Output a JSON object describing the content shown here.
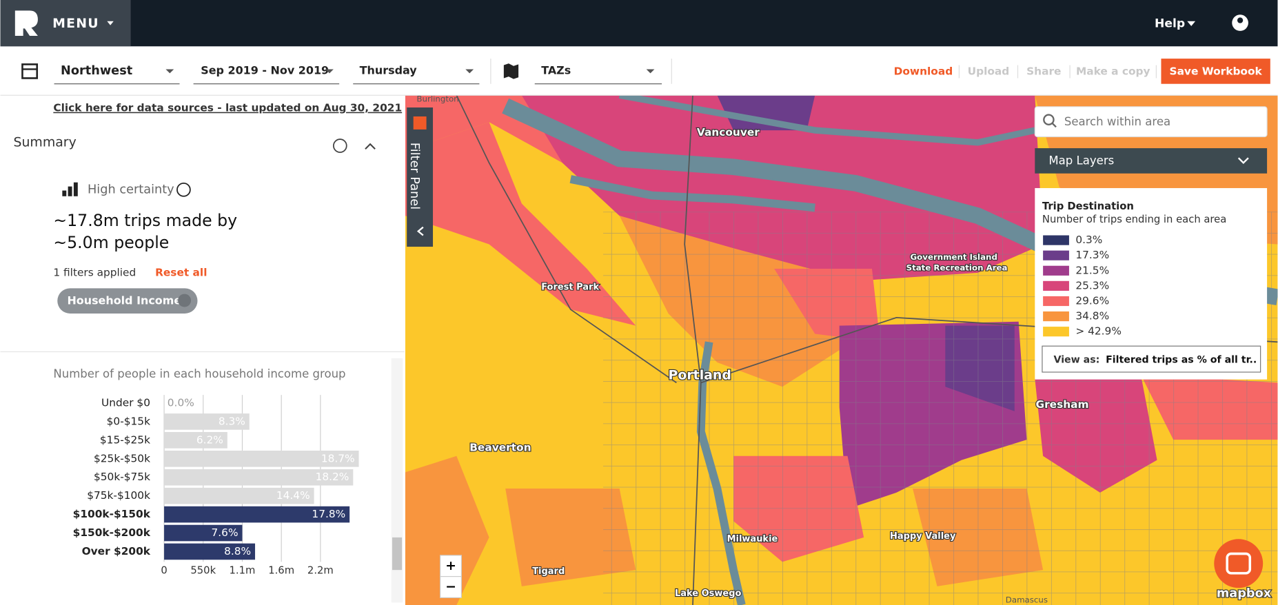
{
  "header": {
    "menu": "MENU",
    "help": "Help"
  },
  "toolbar": {
    "region": "Northwest",
    "dates": "Sep 2019 - Nov 2019",
    "day": "Thursday",
    "geography": "TAZs",
    "actions": [
      "Download",
      "Upload",
      "Share",
      "Make a copy"
    ],
    "save": "Save Workbook"
  },
  "sidebar": {
    "data_sources": "Click here for data sources - last updated on Aug 30, 2021",
    "summary": "Summary",
    "certainty": "High certainty",
    "trips": "~17.8m trips made by",
    "people": "~5.0m people",
    "filters": "1 filters applied",
    "reset": "Reset all",
    "chip": "Household Income"
  },
  "chart_data": {
    "type": "bar",
    "orientation": "horizontal",
    "title": "Number of people in each household income group",
    "categories": [
      "Under $0",
      "$0-$15k",
      "$15-$25k",
      "$25k-$50k",
      "$50k-$75k",
      "$75k-$100k",
      "$100k-$150k",
      "$150k-$200k",
      "Over $200k"
    ],
    "values": [
      0,
      1200000,
      890000,
      2740000,
      2660000,
      2110000,
      2610000,
      1100000,
      1280000
    ],
    "share_labels": [
      "0.0%",
      "8.3%",
      "6.2%",
      "18.7%",
      "18.2%",
      "14.4%",
      "17.8%",
      "7.6%",
      "8.8%"
    ],
    "selected": [
      false,
      false,
      false,
      false,
      false,
      false,
      true,
      true,
      true
    ],
    "colors": {
      "selected": "#2d3a6b",
      "other": "#dcdcdc"
    },
    "xlim": [
      0,
      2900000
    ],
    "xticks": [
      0,
      {
        "value": 550000,
        "label": "550k"
      },
      {
        "value": 1100000,
        "label": "1.1m"
      },
      {
        "value": 1650000,
        "label": "1.6m"
      },
      {
        "value": 2200000,
        "label": "2.2m"
      }
    ],
    "grid": true
  },
  "map": {
    "filter_panel": "Filter Panel",
    "search_placeholder": "Search within area",
    "layers": "Map Layers",
    "legend": {
      "title": "Trip Destination",
      "subtitle": "Number of trips ending in each area",
      "items": [
        {
          "label": "0.3%",
          "color": "#2e3567"
        },
        {
          "label": "17.3%",
          "color": "#6b3d8a"
        },
        {
          "label": "21.5%",
          "color": "#a03c8c"
        },
        {
          "label": "25.3%",
          "color": "#d8457a"
        },
        {
          "label": "29.6%",
          "color": "#f66766"
        },
        {
          "label": "34.8%",
          "color": "#f8953e"
        },
        {
          "label": "> 42.9%",
          "color": "#fcc72a"
        }
      ]
    },
    "view_as_label": "View as:",
    "view_as_value": "Filtered trips as % of all tr..",
    "places": [
      "Vancouver",
      "Portland",
      "Beaverton",
      "Gresham",
      "Milwaukie",
      "Tigard",
      "Lake Oswego",
      "Happy Valley",
      "Forest Park",
      "Government Island",
      "State Recreation Area",
      "Burlington",
      "Damascus"
    ],
    "attribution": "mapbox"
  }
}
